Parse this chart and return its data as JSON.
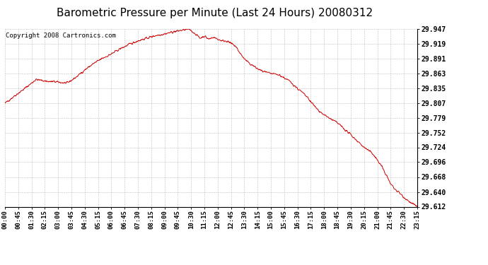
{
  "title": "Barometric Pressure per Minute (Last 24 Hours) 20080312",
  "copyright": "Copyright 2008 Cartronics.com",
  "line_color": "#cc0000",
  "background_color": "#ffffff",
  "plot_bg_color": "#ffffff",
  "grid_color": "#b0b0b0",
  "title_fontsize": 11,
  "ylabel_fontsize": 7,
  "xlabel_fontsize": 6.5,
  "copyright_fontsize": 6.5,
  "yticks": [
    29.612,
    29.64,
    29.668,
    29.696,
    29.724,
    29.752,
    29.779,
    29.807,
    29.835,
    29.863,
    29.891,
    29.919,
    29.947
  ],
  "xtick_labels": [
    "00:00",
    "00:45",
    "01:30",
    "02:15",
    "03:00",
    "03:45",
    "04:30",
    "05:15",
    "06:00",
    "06:45",
    "07:30",
    "08:15",
    "09:00",
    "09:45",
    "10:30",
    "11:15",
    "12:00",
    "12:45",
    "13:30",
    "14:15",
    "15:00",
    "15:45",
    "16:30",
    "17:15",
    "18:00",
    "18:45",
    "19:30",
    "20:15",
    "21:00",
    "21:45",
    "22:30",
    "23:15"
  ],
  "ymin": 29.612,
  "ymax": 29.947,
  "control_points_t": [
    0,
    30,
    60,
    90,
    105,
    150,
    165,
    210,
    240,
    270,
    300,
    330,
    360,
    390,
    420,
    450,
    480,
    510,
    540,
    570,
    600,
    625,
    630,
    645,
    660,
    675,
    690,
    705,
    720,
    735,
    750,
    765,
    780,
    795,
    810,
    825,
    840,
    855,
    870,
    885,
    900,
    915,
    930,
    945,
    960,
    975,
    990,
    1005,
    1020,
    1035,
    1050,
    1065,
    1080,
    1095,
    1110,
    1125,
    1140,
    1155,
    1170,
    1185,
    1200,
    1215,
    1230,
    1245,
    1260,
    1275,
    1290,
    1305,
    1320,
    1335,
    1350,
    1365,
    1380,
    1395
  ],
  "control_points_v": [
    29.807,
    29.82,
    29.832,
    29.845,
    29.852,
    29.848,
    29.848,
    29.845,
    29.856,
    29.87,
    29.882,
    29.892,
    29.9,
    29.91,
    29.918,
    29.925,
    29.93,
    29.935,
    29.938,
    29.942,
    29.945,
    29.947,
    29.944,
    29.938,
    29.93,
    29.934,
    29.928,
    29.932,
    29.928,
    29.925,
    29.925,
    29.92,
    29.915,
    29.902,
    29.891,
    29.883,
    29.878,
    29.872,
    29.868,
    29.865,
    29.863,
    29.862,
    29.86,
    29.855,
    29.85,
    29.843,
    29.835,
    29.828,
    29.82,
    29.81,
    29.8,
    29.792,
    29.785,
    29.78,
    29.775,
    29.77,
    29.763,
    29.755,
    29.748,
    29.74,
    29.732,
    29.724,
    29.718,
    29.712,
    29.7,
    29.688,
    29.672,
    29.655,
    29.645,
    29.638,
    29.63,
    29.623,
    29.617,
    29.612
  ],
  "noise_seed": 42,
  "noise_std": 0.0018
}
